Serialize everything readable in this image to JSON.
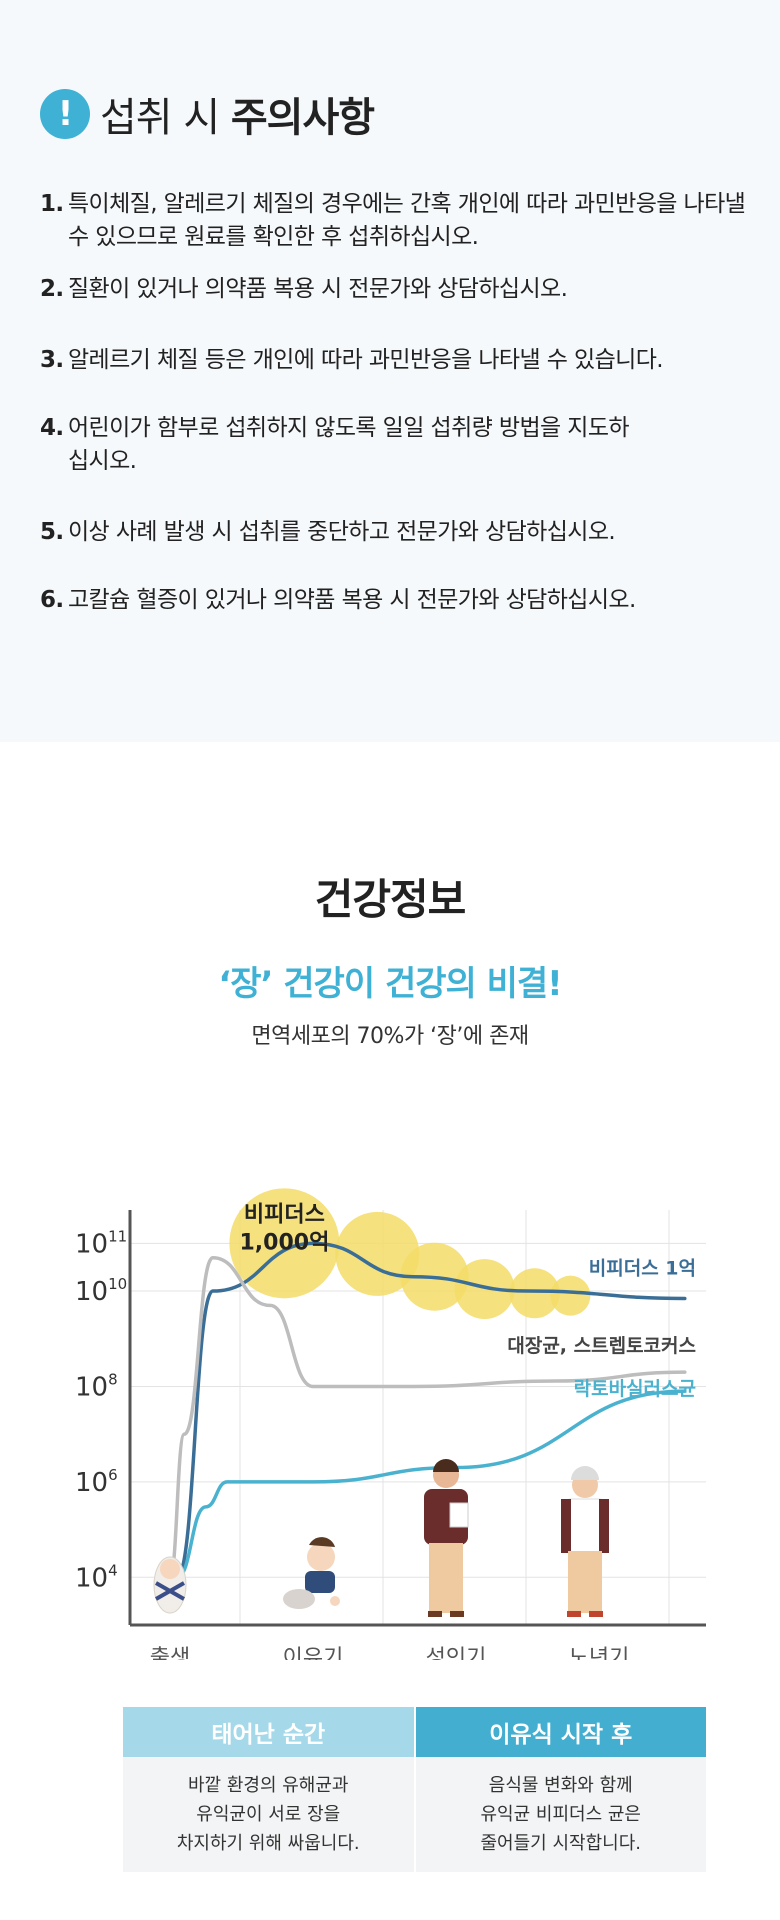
{
  "caution": {
    "icon": "exclamation-icon",
    "icon_glyph": "!",
    "title_normal": "섭취 시",
    "title_bold": "주의사항",
    "items": [
      {
        "num": "1.",
        "text": "특이체질, 알레르기 체질의 경우에는 간혹 개인에 따라 과민반응을 나타낼 수 있으므로 원료를 확인한 후 섭취하십시오."
      },
      {
        "num": "2.",
        "text": "질환이 있거나 의약품 복용 시 전문가와 상담하십시오."
      },
      {
        "num": "3.",
        "text": "알레르기 체질 등은 개인에 따라 과민반응을 나타낼 수 있습니다."
      },
      {
        "num": "4.",
        "text": "어린이가 함부로 섭취하지 않도록 일일 섭취량 방법을 지도하십시오."
      },
      {
        "num": "5.",
        "text": "이상 사례 발생 시 섭취를 중단하고 전문가와 상담하십시오."
      },
      {
        "num": "6.",
        "text": "고칼슘 혈증이 있거나 의약품 복용 시 전문가와 상담하십시오."
      }
    ],
    "bg_color": "#f6f9fb",
    "accent_color": "#3fb1d4"
  },
  "health": {
    "title": "건강정보",
    "subtitle": "‘장’ 건강이 건강의 비결!",
    "description": "면역세포의 70%가 ‘장’에 존재"
  },
  "chart_data": {
    "type": "line",
    "y_scale": "log",
    "y_ticks": [
      {
        "base": "10",
        "exp": "11",
        "value": 100000000000
      },
      {
        "base": "10",
        "exp": "10",
        "value": 10000000000
      },
      {
        "base": "10",
        "exp": "8",
        "value": 100000000
      },
      {
        "base": "10",
        "exp": "6",
        "value": 1000000
      },
      {
        "base": "10",
        "exp": "4",
        "value": 10000
      }
    ],
    "ylim": [
      1000,
      500000000000
    ],
    "categories": [
      "출생",
      "이유기",
      "성인기",
      "노년기"
    ],
    "grid": true,
    "bubble_label_1": "비피더스",
    "bubble_label_2": "1,000억",
    "bubble_color": "#f3dc66",
    "series": [
      {
        "name": "비피더스 1억",
        "color": "#3b6e96",
        "points": [
          [
            0.05,
            10000
          ],
          [
            0.3,
            10000000000
          ],
          [
            1.0,
            100000000000
          ],
          [
            1.7,
            20000000000
          ],
          [
            2.5,
            10000000000
          ],
          [
            3.6,
            7000000000
          ]
        ]
      },
      {
        "name": "대장균, 스트렙토코커스",
        "color": "#bdbdbd",
        "points": [
          [
            0.0,
            10000
          ],
          [
            0.1,
            10000000
          ],
          [
            0.3,
            50000000000
          ],
          [
            0.7,
            5000000000
          ],
          [
            1.0,
            100000000
          ],
          [
            1.7,
            100000000
          ],
          [
            2.7,
            130000000
          ],
          [
            3.6,
            200000000
          ]
        ]
      },
      {
        "name": "락토바실러스균",
        "color": "#4ab2cf",
        "points": [
          [
            0.05,
            10000
          ],
          [
            0.25,
            300000
          ],
          [
            0.4,
            1000000
          ],
          [
            1.0,
            1000000
          ],
          [
            2.0,
            2000000
          ],
          [
            3.6,
            80000000
          ]
        ]
      }
    ],
    "figures": [
      "baby-figure",
      "crawling-child-figure",
      "adult-figure",
      "elderly-figure"
    ]
  },
  "stages": {
    "left": {
      "header": "태어난 순간",
      "header_color": "#a5d9ea",
      "body": "바깥 환경의 유해균과\n유익균이 서로 장을\n차지하기 위해 싸웁니다."
    },
    "right": {
      "header": "이유식 시작 후",
      "header_color": "#43aed0",
      "body": "음식물 변화와 함께\n유익균 비피더스 균은\n줄어들기 시작합니다."
    }
  }
}
